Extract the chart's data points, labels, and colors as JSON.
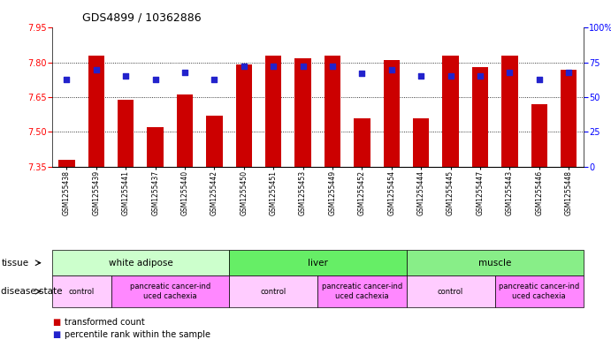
{
  "title": "GDS4899 / 10362886",
  "samples": [
    "GSM1255438",
    "GSM1255439",
    "GSM1255441",
    "GSM1255437",
    "GSM1255440",
    "GSM1255442",
    "GSM1255450",
    "GSM1255451",
    "GSM1255453",
    "GSM1255449",
    "GSM1255452",
    "GSM1255454",
    "GSM1255444",
    "GSM1255445",
    "GSM1255447",
    "GSM1255443",
    "GSM1255446",
    "GSM1255448"
  ],
  "transformed_count": [
    7.38,
    7.83,
    7.64,
    7.52,
    7.66,
    7.57,
    7.79,
    7.83,
    7.82,
    7.83,
    7.56,
    7.81,
    7.56,
    7.83,
    7.78,
    7.83,
    7.62,
    7.77
  ],
  "percentile_rank": [
    63,
    70,
    65,
    63,
    68,
    63,
    72,
    72,
    72,
    72,
    67,
    70,
    65,
    65,
    65,
    68,
    63,
    68
  ],
  "bar_bottom": 7.35,
  "ylim_left": [
    7.35,
    7.95
  ],
  "ylim_right": [
    0,
    100
  ],
  "yticks_left": [
    7.35,
    7.5,
    7.65,
    7.8,
    7.95
  ],
  "yticks_right": [
    0,
    25,
    50,
    75,
    100
  ],
  "bar_color": "#cc0000",
  "dot_color": "#2222cc",
  "tissue_groups": [
    {
      "label": "white adipose",
      "start": 0,
      "end": 6,
      "color": "#ccffcc"
    },
    {
      "label": "liver",
      "start": 6,
      "end": 12,
      "color": "#66ee66"
    },
    {
      "label": "muscle",
      "start": 12,
      "end": 18,
      "color": "#88ee88"
    }
  ],
  "disease_groups": [
    {
      "label": "control",
      "start": 0,
      "end": 2,
      "color": "#ffccff"
    },
    {
      "label": "pancreatic cancer-ind\nuced cachexia",
      "start": 2,
      "end": 6,
      "color": "#ff88ff"
    },
    {
      "label": "control",
      "start": 6,
      "end": 9,
      "color": "#ffccff"
    },
    {
      "label": "pancreatic cancer-ind\nuced cachexia",
      "start": 9,
      "end": 12,
      "color": "#ff88ff"
    },
    {
      "label": "control",
      "start": 12,
      "end": 15,
      "color": "#ffccff"
    },
    {
      "label": "pancreatic cancer-ind\nuced cachexia",
      "start": 15,
      "end": 18,
      "color": "#ff88ff"
    }
  ],
  "legend_items": [
    {
      "color": "#cc0000",
      "label": "transformed count"
    },
    {
      "color": "#2222cc",
      "label": "percentile rank within the sample"
    }
  ],
  "tissue_row_label": "tissue",
  "disease_row_label": "disease state",
  "background_color": "#ffffff",
  "plot_facecolor": "#ffffff",
  "grid_yticks": [
    7.5,
    7.65,
    7.8
  ]
}
